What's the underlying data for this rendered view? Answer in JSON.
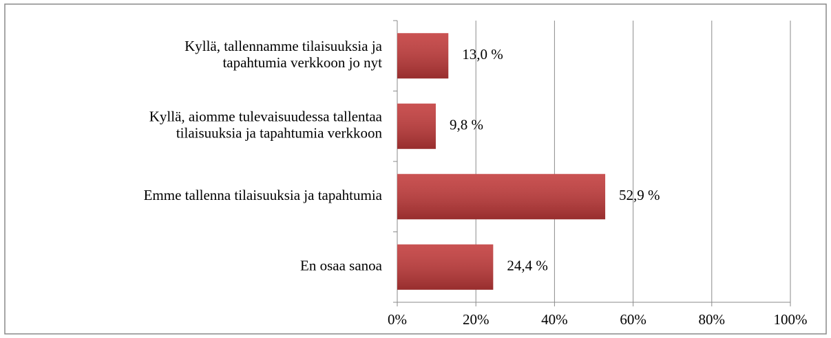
{
  "chart_data": {
    "type": "bar",
    "orientation": "horizontal",
    "categories": [
      [
        "Kyllä, tallennamme tilaisuuksia ja",
        "tapahtumia verkkoon jo nyt"
      ],
      [
        "Kyllä, aiomme tulevaisuudessa tallentaa",
        "tilaisuuksia ja tapahtumia verkkoon"
      ],
      [
        "Emme tallenna tilaisuuksia ja tapahtumia"
      ],
      [
        "En osaa sanoa"
      ]
    ],
    "values": [
      13.0,
      9.8,
      52.9,
      24.4
    ],
    "value_labels": [
      "13,0 %",
      "9,8 %",
      "52,9 %",
      "24,4 %"
    ],
    "color": "#c23a3a",
    "xlim": [
      0,
      100
    ],
    "xticks": [
      {
        "value": 0,
        "label": "0%"
      },
      {
        "value": 20,
        "label": "20%"
      },
      {
        "value": 40,
        "label": "40%"
      },
      {
        "value": 60,
        "label": "60%"
      },
      {
        "value": 80,
        "label": "80%"
      },
      {
        "value": 100,
        "label": "100%"
      }
    ],
    "grid": true
  }
}
